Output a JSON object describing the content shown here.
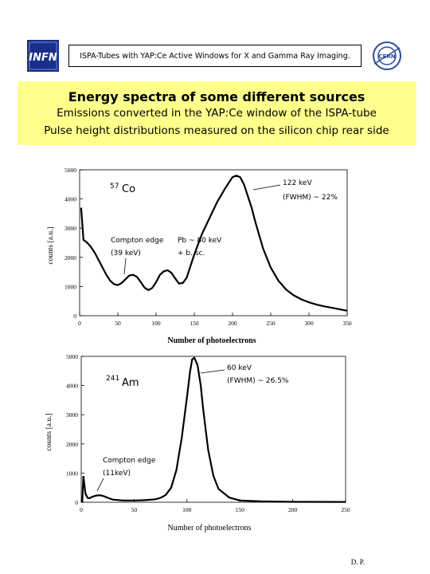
{
  "header": {
    "title": "ISPA-Tubes with YAP:Ce Active Windows for X and Gamma Ray Imaging.",
    "left_logo": "INFN",
    "right_logo": "CERN"
  },
  "banner": {
    "title": "Energy spectra of some different sources",
    "line1": "Emissions converted in the YAP:Ce window of the ISPA-tube",
    "line2": "Pulse height distributions measured on the silicon chip rear side",
    "background": "#ffff8c"
  },
  "footer": {
    "text": "D. P."
  },
  "chart_data": [
    {
      "type": "line",
      "source_label": {
        "mass": "57",
        "element": "Co"
      },
      "xlabel": "Number of photoelectrons",
      "ylabel": "counts [a.u.]",
      "xlim": [
        0,
        350
      ],
      "ylim": [
        0,
        5000
      ],
      "xticks": [
        0,
        50,
        100,
        150,
        200,
        250,
        300,
        350
      ],
      "yticks": [
        0,
        1000,
        2000,
        3000,
        4000,
        5000
      ],
      "annotations": [
        {
          "text": "122 keV"
        },
        {
          "text": "(FWHM) ~ 22%"
        },
        {
          "text": "Compton edge"
        },
        {
          "text": "(39 keV)"
        },
        {
          "text": "Pb ~ 80 keV"
        },
        {
          "text": "+ b. sc."
        }
      ],
      "x": [
        2,
        5,
        10,
        15,
        20,
        25,
        30,
        35,
        40,
        45,
        50,
        55,
        60,
        65,
        70,
        75,
        80,
        85,
        90,
        95,
        100,
        105,
        110,
        115,
        120,
        125,
        130,
        135,
        140,
        145,
        150,
        160,
        170,
        180,
        190,
        200,
        205,
        210,
        215,
        220,
        225,
        230,
        235,
        240,
        250,
        260,
        270,
        280,
        290,
        300,
        310,
        320,
        330,
        340,
        350
      ],
      "y": [
        3700,
        2600,
        2500,
        2350,
        2150,
        1900,
        1650,
        1400,
        1200,
        1080,
        1050,
        1120,
        1250,
        1380,
        1400,
        1330,
        1150,
        960,
        880,
        950,
        1150,
        1400,
        1520,
        1560,
        1470,
        1280,
        1100,
        1120,
        1300,
        1700,
        2100,
        2800,
        3350,
        3900,
        4350,
        4750,
        4800,
        4750,
        4500,
        4100,
        3700,
        3200,
        2750,
        2300,
        1650,
        1200,
        900,
        700,
        560,
        460,
        380,
        320,
        270,
        220,
        170
      ]
    },
    {
      "type": "line",
      "source_label": {
        "mass": "241",
        "element": "Am"
      },
      "xlabel": "Number of photoelectrons",
      "ylabel": "counts [a.u.]",
      "xlim": [
        0,
        250
      ],
      "ylim": [
        0,
        5000
      ],
      "xticks": [
        0,
        50,
        100,
        150,
        200,
        250
      ],
      "yticks": [
        0,
        1000,
        2000,
        3000,
        4000,
        5000
      ],
      "annotations": [
        {
          "text": "60 keV"
        },
        {
          "text": "(FWHM) ~ 26.5%"
        },
        {
          "text": "Compton edge"
        },
        {
          "text": "(11keV)"
        }
      ],
      "x": [
        1,
        2,
        4,
        6,
        8,
        10,
        14,
        18,
        22,
        26,
        30,
        40,
        50,
        60,
        70,
        75,
        80,
        85,
        90,
        95,
        100,
        103,
        105,
        107,
        110,
        113,
        115,
        118,
        120,
        125,
        130,
        140,
        150,
        170,
        200,
        250
      ],
      "y": [
        0,
        900,
        300,
        150,
        140,
        180,
        230,
        240,
        200,
        140,
        90,
        60,
        60,
        70,
        100,
        150,
        250,
        500,
        1100,
        2200,
        3600,
        4500,
        4900,
        4950,
        4700,
        4000,
        3300,
        2400,
        1800,
        900,
        450,
        160,
        60,
        30,
        15,
        10
      ]
    }
  ]
}
